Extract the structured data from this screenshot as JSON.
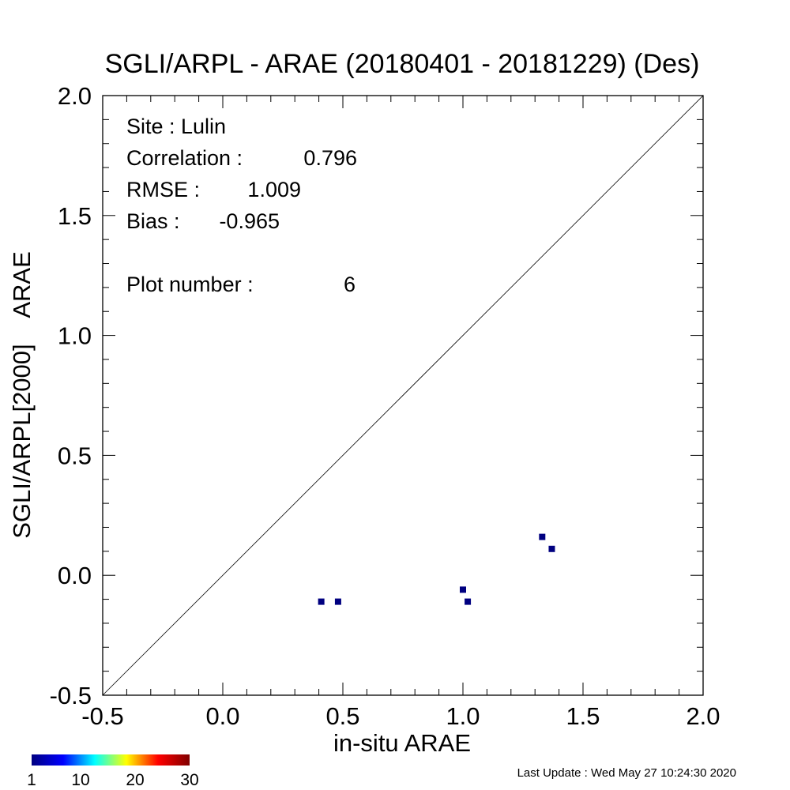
{
  "chart_data": {
    "type": "scatter",
    "title": "SGLI/ARPL - ARAE (20180401 - 20181229) (Des)",
    "xlabel": "in-situ ARAE",
    "ylabel": "SGLI/ARPL[2000]    ARAE",
    "xlim": [
      -0.5,
      2.0
    ],
    "ylim": [
      -0.5,
      2.0
    ],
    "x_ticks": [
      "-0.5",
      "0.0",
      "0.5",
      "1.0",
      "1.5",
      "2.0"
    ],
    "y_ticks": [
      "-0.5",
      "0.0",
      "0.5",
      "1.0",
      "1.5",
      "2.0"
    ],
    "one_to_one_line": true,
    "grid": false,
    "point_color": "#000080",
    "points": [
      {
        "x": 0.41,
        "y": -0.11
      },
      {
        "x": 0.48,
        "y": -0.11
      },
      {
        "x": 1.0,
        "y": -0.06
      },
      {
        "x": 1.02,
        "y": -0.11
      },
      {
        "x": 1.33,
        "y": 0.16
      },
      {
        "x": 1.37,
        "y": 0.11
      }
    ],
    "stats": {
      "site": "Site : Lulin",
      "correlation_label": "Correlation :",
      "correlation_value": "0.796",
      "rmse_label": "RMSE :",
      "rmse_value": "1.009",
      "bias_label": "Bias :",
      "bias_value": "-0.965",
      "plot_number_label": "Plot number :",
      "plot_number_value": "6"
    },
    "colorbar": {
      "ticks": [
        "1",
        "10",
        "20",
        "30"
      ],
      "colors": [
        "#000080",
        "#0000ff",
        "#00ffff",
        "#ffff00",
        "#ff0000",
        "#800000"
      ]
    }
  },
  "footer": {
    "last_update": "Last Update : Wed May 27 10:24:30 2020"
  }
}
